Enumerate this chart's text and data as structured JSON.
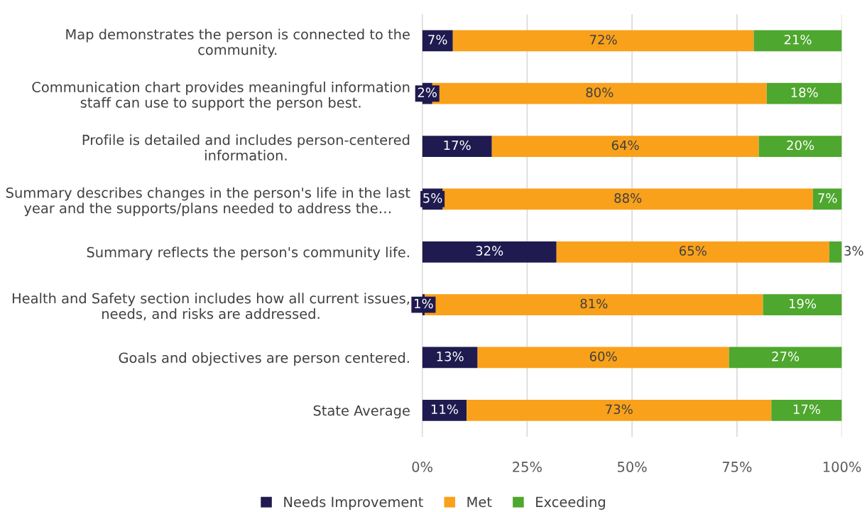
{
  "chart_data": {
    "type": "bar",
    "orientation": "horizontal",
    "stacked": true,
    "categories": [
      "Map demonstrates the person is connected to the\ncommunity.",
      "Communication chart provides meaningful information\nstaff can use to support the person best.",
      "Profile is detailed and includes person-centered\ninformation.",
      "Summary describes changes in the person's life in the last\nyear and the supports/plans needed to address the…",
      "Summary reflects the person's community life.",
      "Health and Safety section includes how all current issues,\nneeds, and risks are addressed.",
      "Goals and objectives are person centered.",
      "State Average"
    ],
    "series": [
      {
        "name": "Needs Improvement",
        "color": "#1f1a4f",
        "values": [
          7.3,
          2.4,
          16.6,
          4.9,
          32.0,
          0.6,
          13.2,
          10.6
        ],
        "value_labels": [
          "7%",
          "2%",
          "17%",
          "5%",
          "32%",
          "1%",
          "13%",
          "11%"
        ]
      },
      {
        "name": "Met",
        "color": "#f9a11b",
        "values": [
          71.7,
          79.7,
          63.6,
          88.2,
          65.0,
          80.6,
          59.9,
          72.6
        ],
        "value_labels": [
          "72%",
          "80%",
          "64%",
          "88%",
          "65%",
          "81%",
          "60%",
          "73%"
        ]
      },
      {
        "name": "Exceeding",
        "color": "#4ea72e",
        "values": [
          21.0,
          17.9,
          19.8,
          6.9,
          3.0,
          18.8,
          26.9,
          16.8
        ],
        "value_labels": [
          "21%",
          "18%",
          "20%",
          "7%",
          "3%",
          "19%",
          "27%",
          "17%"
        ]
      }
    ],
    "xlim": [
      0,
      100
    ],
    "xticks": [
      {
        "value": 0,
        "label": "0%"
      },
      {
        "value": 25,
        "label": "25%"
      },
      {
        "value": 50,
        "label": "50%"
      },
      {
        "value": 75,
        "label": "75%"
      },
      {
        "value": 100,
        "label": "100%"
      }
    ],
    "grid": "x",
    "legend": "bottom"
  }
}
